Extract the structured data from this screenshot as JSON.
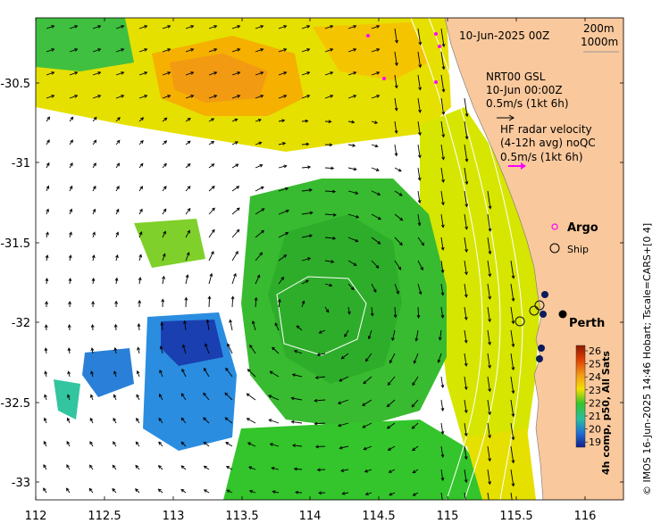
{
  "map": {
    "date_label": "10-Jun-2025 00Z",
    "depth_labels": [
      "200m",
      "1000m"
    ],
    "product_info": [
      "NRT00 GSL",
      "10-Jun 00:00Z",
      "0.5m/s (1kt 6h)"
    ],
    "radar_info": [
      "HF radar velocity",
      "(4-12h avg) noQC",
      "0.5m/s (1kt 6h)"
    ],
    "legend": {
      "argo": "Argo",
      "ship": "Ship"
    },
    "city": "Perth",
    "colorbar": {
      "title": "4h comp, p50, All Sats",
      "ticks": [
        "26",
        "25",
        "24",
        "23",
        "22",
        "21",
        "20",
        "19"
      ],
      "colors": [
        "#8b1a00",
        "#e04000",
        "#f59a18",
        "#f5e000",
        "#33c52b",
        "#29bfa0",
        "#1f70d8",
        "#121f8a"
      ]
    },
    "credit": "© IMOS 16-Jun-2025 14:46 Hobart; Tscale=CARS+[0 4]",
    "x_ticks": [
      "112",
      "112.5",
      "113",
      "113.5",
      "114",
      "114.5",
      "115",
      "115.5",
      "116"
    ],
    "y_ticks": [
      "-30.5",
      "-31",
      "-31.5",
      "-32",
      "-32.5",
      "-33"
    ],
    "colors": {
      "land": "#f9c89c",
      "ocean_bg": "#ffffff",
      "argo": "#ff00ff",
      "radar_arrow": "#ff00ff",
      "station": "#0b1a5a"
    }
  }
}
